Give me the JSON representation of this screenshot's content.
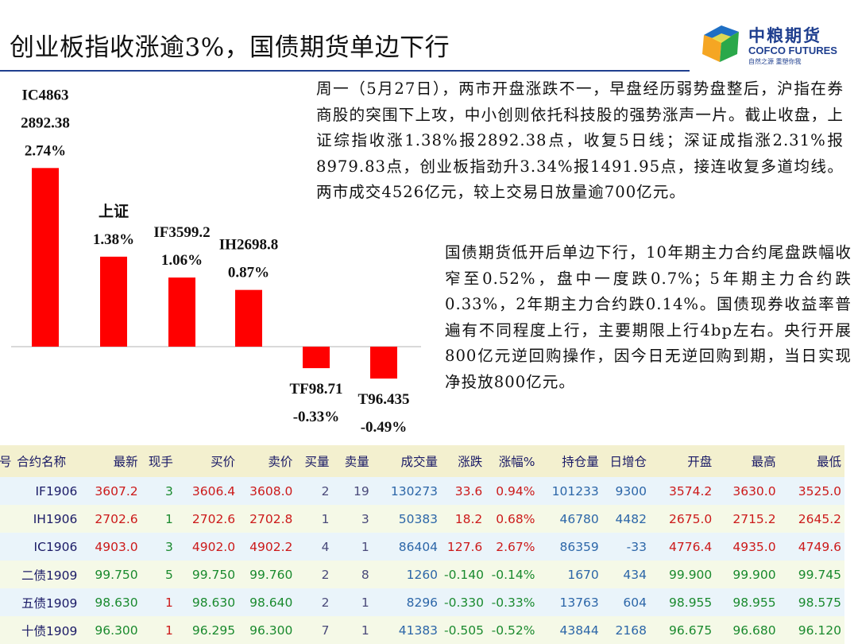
{
  "title": "创业板指收涨逾3%，国债期货单边下行",
  "logo": {
    "cn": "中粮期货",
    "en": "COFCO FUTURES",
    "sub": "自然之源  重塑你我"
  },
  "commentary": {
    "market": "周一（5月27日），两市开盘涨跌不一，早盘经历弱势盘整后，沪指在券商股的突围下上攻，中小创则依托科技股的强势涨声一片。截止收盘，上证综指收涨1.38%报2892.38点，收复5日线；深证成指涨2.31%报8979.83点，创业板指劲升3.34%报1491.95点，接连收复多道均线。两市成交4526亿元，较上交易日放量逾700亿元。",
    "bonds": "国债期货低开后单边下行，10年期主力合约尾盘跌幅收窄至0.52%，盘中一度跌0.7%；5年期主力合约跌0.33%，2年期主力合约跌0.14%。国债现券收益率普遍有不同程度上行，主要期限上行4bp左右。央行开展800亿元逆回购操作，因今日无逆回购到期，当日实现净投放800亿元。"
  },
  "chart_data": {
    "type": "bar",
    "categories": [
      "IC4863",
      "上证",
      "IF3599.2",
      "IH2698.8",
      "TF98.71",
      "T96.435"
    ],
    "value_labels": [
      "2892.38",
      "",
      "",
      "",
      "",
      ""
    ],
    "values": [
      2.74,
      1.38,
      1.06,
      0.87,
      -0.33,
      -0.49
    ],
    "percent_labels": [
      "2.74%",
      "1.38%",
      "1.06%",
      "0.87%",
      "-0.33%",
      "-0.49%"
    ],
    "bar_color": "#ff0000",
    "xlabel": "",
    "ylabel": "",
    "grid": false,
    "legend": "none"
  },
  "table": {
    "headers": [
      "号",
      "合约名称",
      "最新",
      "现手",
      "买价",
      "卖价",
      "买量",
      "卖量",
      "成交量",
      "涨跌",
      "涨幅%",
      "持仓量",
      "日增仓",
      "开盘",
      "最高",
      "最低"
    ],
    "rows": [
      [
        "",
        "IF1906",
        "3607.2",
        "3",
        "3606.4",
        "3608.0",
        "2",
        "19",
        "130273",
        "33.6",
        "0.94%",
        "101233",
        "9300",
        "3574.2",
        "3630.0",
        "3525.0"
      ],
      [
        "",
        "IH1906",
        "2702.6",
        "1",
        "2702.6",
        "2702.8",
        "1",
        "3",
        "50383",
        "18.2",
        "0.68%",
        "46780",
        "4482",
        "2675.0",
        "2715.2",
        "2645.2"
      ],
      [
        "",
        "IC1906",
        "4903.0",
        "3",
        "4902.0",
        "4902.2",
        "4",
        "1",
        "86404",
        "127.6",
        "2.67%",
        "86359",
        "-33",
        "4776.4",
        "4935.0",
        "4749.6"
      ],
      [
        "",
        "二债1909",
        "99.750",
        "5",
        "99.750",
        "99.760",
        "2",
        "8",
        "1260",
        "-0.140",
        "-0.14%",
        "1670",
        "434",
        "99.900",
        "99.900",
        "99.745"
      ],
      [
        "",
        "五债1909",
        "98.630",
        "1",
        "98.630",
        "98.640",
        "2",
        "1",
        "8296",
        "-0.330",
        "-0.33%",
        "13763",
        "604",
        "98.955",
        "98.955",
        "98.575"
      ],
      [
        "",
        "十债1909",
        "96.300",
        "1",
        "96.295",
        "96.300",
        "7",
        "1",
        "41383",
        "-0.505",
        "-0.52%",
        "43844",
        "2168",
        "96.675",
        "96.680",
        "96.120"
      ]
    ]
  }
}
